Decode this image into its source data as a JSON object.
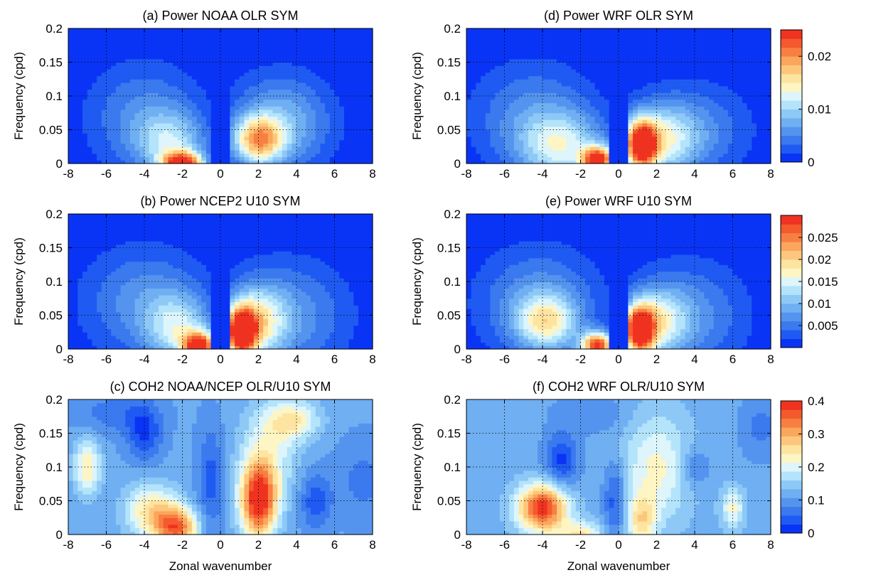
{
  "chart_data": [
    {
      "id": "a",
      "type": "heatmap",
      "title": "(a) Power NOAA OLR SYM",
      "xlabel": "",
      "ylabel": "Frequency (cpd)",
      "xlim": [
        -8,
        8
      ],
      "ylim": [
        0,
        0.2
      ],
      "xticks": [
        "-8",
        "-6",
        "-4",
        "-2",
        "0",
        "2",
        "4",
        "6",
        "8"
      ],
      "yticks": [
        "0",
        "0.05",
        "0.1",
        "0.15",
        "0.2"
      ],
      "grid": true,
      "peaks": [
        {
          "x": -2,
          "y": 0.0,
          "value": 0.023
        },
        {
          "x": 2,
          "y": 0.035,
          "value": 0.017
        }
      ]
    },
    {
      "id": "b",
      "type": "heatmap",
      "title": "(b) Power NCEP2 U10 SYM",
      "xlabel": "",
      "ylabel": "Frequency (cpd)",
      "xlim": [
        -8,
        8
      ],
      "ylim": [
        0,
        0.2
      ],
      "xticks": [
        "-8",
        "-6",
        "-4",
        "-2",
        "0",
        "2",
        "4",
        "6",
        "8"
      ],
      "yticks": [
        "0",
        "0.05",
        "0.1",
        "0.15",
        "0.2"
      ],
      "grid": true,
      "peaks": [
        {
          "x": -1,
          "y": 0.01,
          "value": 0.029
        },
        {
          "x": 1,
          "y": 0.03,
          "value": 0.03
        }
      ]
    },
    {
      "id": "c",
      "type": "heatmap",
      "title": "(c) COH2 NOAA/NCEP OLR/U10 SYM",
      "xlabel": "Zonal wavenumber",
      "ylabel": "Frequency (cpd)",
      "xlim": [
        -8,
        8
      ],
      "ylim": [
        0,
        0.2
      ],
      "xticks": [
        "-8",
        "-6",
        "-4",
        "-2",
        "0",
        "2",
        "4",
        "6",
        "8"
      ],
      "yticks": [
        "0",
        "0.05",
        "0.1",
        "0.15",
        "0.2"
      ],
      "grid": true,
      "peaks": [
        {
          "x": 2,
          "y": 0.05,
          "value": 0.4
        },
        {
          "x": -2,
          "y": 0.0,
          "value": 0.38
        },
        {
          "x": -3,
          "y": 0.03,
          "value": 0.33
        },
        {
          "x": -7,
          "y": 0.1,
          "value": 0.27
        },
        {
          "x": 4,
          "y": 0.17,
          "value": 0.3
        }
      ]
    },
    {
      "id": "d",
      "type": "heatmap",
      "title": "(d) Power WRF OLR SYM",
      "xlabel": "",
      "ylabel": "Frequency (cpd)",
      "xlim": [
        -8,
        8
      ],
      "ylim": [
        0,
        0.2
      ],
      "xticks": [
        "-8",
        "-6",
        "-4",
        "-2",
        "0",
        "2",
        "4",
        "6",
        "8"
      ],
      "yticks": [
        "0",
        "0.05",
        "0.1",
        "0.15",
        "0.2"
      ],
      "grid": true,
      "colorbar": {
        "range": [
          0,
          0.025
        ],
        "ticks": [
          "0.02",
          "0.01",
          "0"
        ]
      },
      "peaks": [
        {
          "x": -1,
          "y": 0.01,
          "value": 0.024
        },
        {
          "x": 1,
          "y": 0.03,
          "value": 0.023
        }
      ]
    },
    {
      "id": "e",
      "type": "heatmap",
      "title": "(e) Power WRF U10 SYM",
      "xlabel": "",
      "ylabel": "Frequency (cpd)",
      "xlim": [
        -8,
        8
      ],
      "ylim": [
        0,
        0.2
      ],
      "xticks": [
        "-8",
        "-6",
        "-4",
        "-2",
        "0",
        "2",
        "4",
        "6",
        "8"
      ],
      "yticks": [
        "0",
        "0.05",
        "0.1",
        "0.15",
        "0.2"
      ],
      "grid": true,
      "colorbar": {
        "range": [
          0,
          0.03
        ],
        "ticks": [
          "0.025",
          "0.02",
          "0.015",
          "0.01",
          "0.005"
        ]
      },
      "peaks": [
        {
          "x": -1,
          "y": 0.01,
          "value": 0.029
        },
        {
          "x": 1,
          "y": 0.03,
          "value": 0.03
        }
      ]
    },
    {
      "id": "f",
      "type": "heatmap",
      "title": "(f) COH2 WRF OLR/U10 SYM",
      "xlabel": "Zonal wavenumber",
      "ylabel": "Frequency (cpd)",
      "xlim": [
        -8,
        8
      ],
      "ylim": [
        0,
        0.2
      ],
      "xticks": [
        "-8",
        "-6",
        "-4",
        "-2",
        "0",
        "2",
        "4",
        "6",
        "8"
      ],
      "yticks": [
        "0",
        "0.05",
        "0.1",
        "0.15",
        "0.2"
      ],
      "grid": true,
      "colorbar": {
        "range": [
          0,
          0.4
        ],
        "ticks": [
          "0.4",
          "0.3",
          "0.2",
          "0.1",
          "0"
        ]
      },
      "peaks": [
        {
          "x": -4,
          "y": 0.04,
          "value": 0.4
        },
        {
          "x": -2,
          "y": 0.0,
          "value": 0.3
        },
        {
          "x": 1,
          "y": 0.02,
          "value": 0.3
        },
        {
          "x": 6,
          "y": 0.04,
          "value": 0.27
        }
      ]
    }
  ],
  "colormap": [
    "#0a34f5",
    "#1f5bf2",
    "#3a79ee",
    "#5594ee",
    "#6faff2",
    "#8ec8f7",
    "#b3e4fb",
    "#ddf5fb",
    "#fdf5c4",
    "#fde4a0",
    "#fcc77c",
    "#fba65d",
    "#f87f42",
    "#f45a2e",
    "#ef3320"
  ]
}
